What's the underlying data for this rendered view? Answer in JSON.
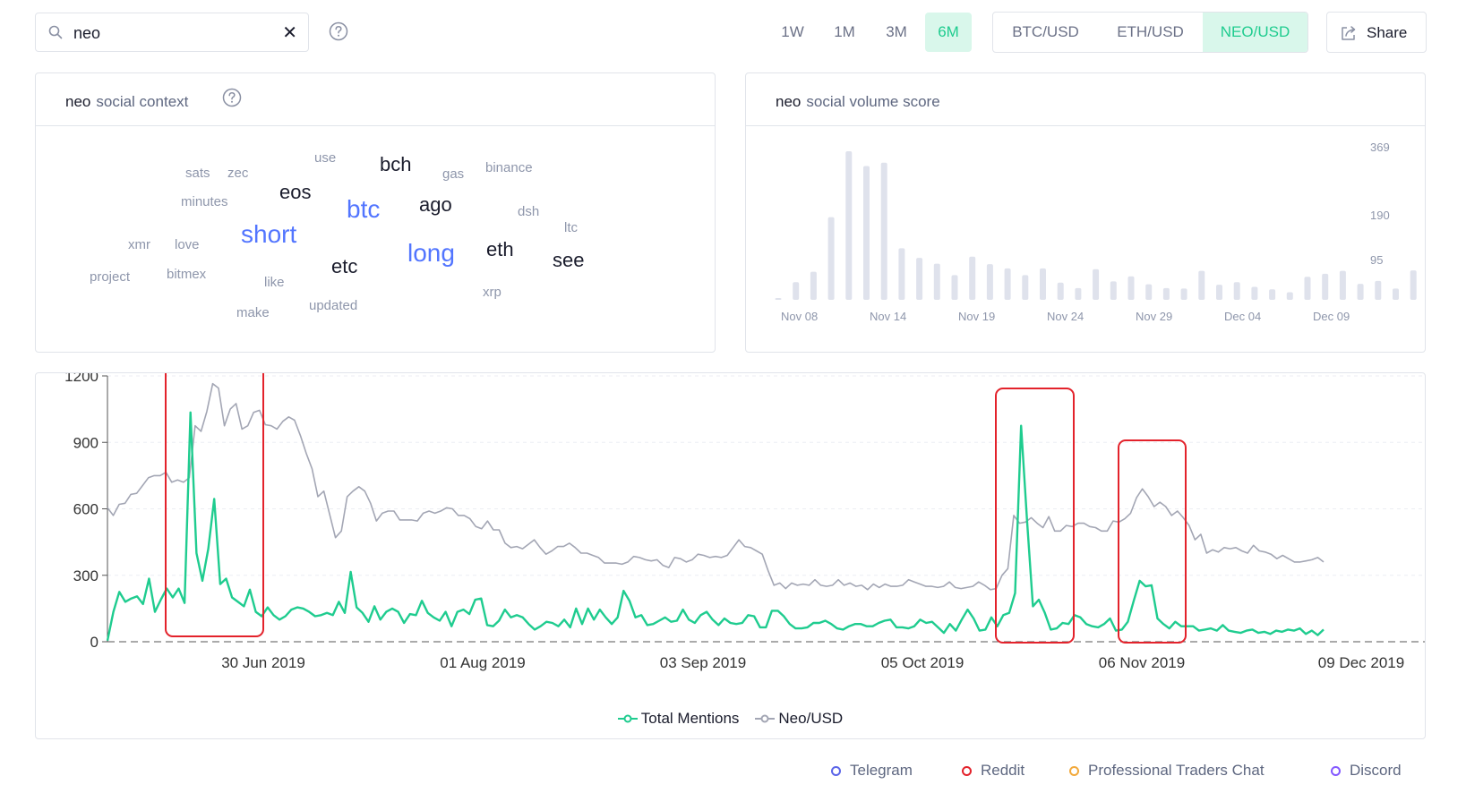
{
  "search": {
    "value": "neo",
    "clear_glyph": "✕"
  },
  "icons": {
    "search": "search-icon",
    "help": "help-circle-icon",
    "share": "share-icon",
    "clear": "close-icon"
  },
  "time_ranges": [
    {
      "label": "1W",
      "active": false
    },
    {
      "label": "1M",
      "active": false
    },
    {
      "label": "3M",
      "active": false
    },
    {
      "label": "6M",
      "active": true
    }
  ],
  "pairs": [
    {
      "label": "BTC/USD",
      "active": false
    },
    {
      "label": "ETH/USD",
      "active": false
    },
    {
      "label": "NEO/USD",
      "active": true
    }
  ],
  "share_label": "Share",
  "colors": {
    "accent": "#1fcc8f",
    "accent_bg": "#d9f7eb",
    "neo_line": "#a3a6b4",
    "bars": "#dfe2ec",
    "highlight": "#e3222b",
    "cloud_blue": "#5275ff"
  },
  "social_context": {
    "title": "neo",
    "subtitle": "social context",
    "words": [
      {
        "text": "use",
        "level": 1
      },
      {
        "text": "sats",
        "level": 1
      },
      {
        "text": "zec",
        "level": 1
      },
      {
        "text": "bch",
        "level": 3
      },
      {
        "text": "gas",
        "level": 1
      },
      {
        "text": "binance",
        "level": 1
      },
      {
        "text": "eos",
        "level": 3
      },
      {
        "text": "minutes",
        "level": 1
      },
      {
        "text": "btc",
        "level": 4
      },
      {
        "text": "ago",
        "level": 3
      },
      {
        "text": "dsh",
        "level": 1
      },
      {
        "text": "short",
        "level": 4
      },
      {
        "text": "ltc",
        "level": 1
      },
      {
        "text": "xmr",
        "level": 1
      },
      {
        "text": "love",
        "level": 1
      },
      {
        "text": "long",
        "level": 4
      },
      {
        "text": "eth",
        "level": 3
      },
      {
        "text": "see",
        "level": 3
      },
      {
        "text": "etc",
        "level": 3
      },
      {
        "text": "project",
        "level": 1
      },
      {
        "text": "bitmex",
        "level": 1
      },
      {
        "text": "like",
        "level": 1
      },
      {
        "text": "xrp",
        "level": 1
      },
      {
        "text": "updated",
        "level": 1
      },
      {
        "text": "make",
        "level": 1
      }
    ]
  },
  "social_volume": {
    "title": "neo",
    "subtitle": "social volume score",
    "y_ticks": [
      "369",
      "190",
      "95"
    ],
    "x_ticks": [
      "Nov 08",
      "Nov 14",
      "Nov 19",
      "Nov 24",
      "Nov 29",
      "Dec 04",
      "Dec 09"
    ]
  },
  "chart_data": [
    {
      "type": "bar",
      "title": "social volume score",
      "ylim": [
        0,
        369
      ],
      "x_labels": [
        "Nov 08",
        "Nov 14",
        "Nov 19",
        "Nov 24",
        "Nov 29",
        "Dec 04",
        "Dec 09"
      ],
      "values": [
        2,
        42,
        67,
        197,
        354,
        319,
        327,
        123,
        100,
        86,
        59,
        103,
        85,
        75,
        59,
        75,
        41,
        28,
        73,
        44,
        56,
        37,
        28,
        27,
        69,
        36,
        42,
        31,
        25,
        18,
        55,
        62,
        69,
        38,
        45,
        27,
        70,
        21,
        50
      ]
    },
    {
      "type": "line",
      "x_ticks": [
        "30 Jun 2019",
        "01 Aug 2019",
        "03 Sep 2019",
        "05 Oct 2019",
        "06 Nov 2019",
        "09 Dec 2019"
      ],
      "y_ticks": [
        0,
        300,
        600,
        900,
        1200
      ],
      "ylim": [
        0,
        1200
      ],
      "series": [
        {
          "name": "Total Mentions",
          "color": "#1fcc8f",
          "values": [
            5,
            135,
            225,
            180,
            195,
            205,
            170,
            285,
            135,
            190,
            240,
            200,
            240,
            175,
            1035,
            400,
            275,
            420,
            645,
            260,
            285,
            200,
            180,
            160,
            235,
            135,
            115,
            155,
            120,
            100,
            115,
            145,
            155,
            150,
            135,
            115,
            120,
            130,
            120,
            180,
            130,
            315,
            155,
            130,
            90,
            160,
            100,
            135,
            150,
            135,
            85,
            125,
            120,
            185,
            130,
            110,
            95,
            135,
            70,
            135,
            145,
            125,
            190,
            195,
            75,
            70,
            95,
            145,
            110,
            120,
            110,
            80,
            55,
            70,
            90,
            85,
            70,
            100,
            65,
            150,
            80,
            150,
            100,
            145,
            110,
            80,
            110,
            230,
            185,
            110,
            120,
            75,
            80,
            95,
            110,
            90,
            95,
            145,
            100,
            85,
            120,
            135,
            100,
            75,
            105,
            85,
            80,
            85,
            120,
            115,
            65,
            65,
            140,
            140,
            115,
            80,
            60,
            60,
            65,
            85,
            85,
            95,
            80,
            60,
            55,
            70,
            80,
            80,
            70,
            70,
            85,
            95,
            100,
            65,
            65,
            60,
            70,
            100,
            85,
            90,
            65,
            40,
            80,
            50,
            100,
            145,
            105,
            50,
            55,
            110,
            70,
            120,
            130,
            220,
            975,
            550,
            160,
            190,
            130,
            55,
            60,
            85,
            80,
            120,
            110,
            80,
            70,
            65,
            80,
            105,
            50,
            55,
            90,
            185,
            275,
            250,
            255,
            105,
            80,
            60,
            90,
            70,
            70,
            70,
            50,
            55,
            60,
            50,
            75,
            50,
            45,
            40,
            50,
            55,
            40,
            45,
            35,
            50,
            45,
            55,
            50,
            60,
            35,
            50,
            30,
            55
          ]
        },
        {
          "name": "Neo/USD",
          "color": "#a3a6b4",
          "values": [
            605,
            570,
            620,
            625,
            665,
            670,
            705,
            740,
            750,
            750,
            765,
            720,
            730,
            720,
            740,
            975,
            950,
            1040,
            1165,
            1145,
            975,
            1050,
            1075,
            960,
            975,
            1035,
            1045,
            980,
            975,
            960,
            995,
            1015,
            1000,
            930,
            850,
            780,
            655,
            680,
            575,
            470,
            500,
            655,
            680,
            700,
            680,
            625,
            545,
            580,
            590,
            590,
            550,
            550,
            550,
            545,
            580,
            590,
            580,
            590,
            605,
            600,
            570,
            570,
            555,
            520,
            510,
            545,
            505,
            505,
            445,
            425,
            430,
            420,
            440,
            460,
            425,
            395,
            410,
            430,
            430,
            445,
            425,
            400,
            400,
            390,
            380,
            355,
            355,
            355,
            350,
            360,
            385,
            380,
            370,
            365,
            370,
            345,
            335,
            380,
            375,
            360,
            370,
            395,
            390,
            380,
            385,
            380,
            390,
            425,
            460,
            430,
            425,
            410,
            395,
            320,
            255,
            265,
            240,
            265,
            255,
            260,
            255,
            280,
            255,
            250,
            255,
            280,
            255,
            265,
            250,
            255,
            235,
            260,
            245,
            260,
            250,
            250,
            255,
            280,
            270,
            260,
            250,
            250,
            245,
            250,
            270,
            245,
            240,
            245,
            250,
            270,
            255,
            235,
            240,
            300,
            330,
            570,
            535,
            540,
            560,
            535,
            515,
            565,
            500,
            500,
            525,
            520,
            535,
            535,
            520,
            515,
            500,
            500,
            545,
            540,
            555,
            580,
            650,
            690,
            655,
            610,
            630,
            610,
            570,
            590,
            560,
            525,
            460,
            485,
            400,
            415,
            405,
            425,
            420,
            425,
            410,
            400,
            435,
            410,
            405,
            395,
            375,
            390,
            375,
            360,
            360,
            365,
            370,
            380,
            360
          ]
        }
      ]
    }
  ],
  "main_chart": {
    "x_ticks": [
      "30 Jun 2019",
      "01 Aug 2019",
      "03 Sep 2019",
      "05 Oct 2019",
      "06 Nov 2019",
      "09 Dec 2019"
    ],
    "y_ticks": [
      "0",
      "300",
      "600",
      "900",
      "1200"
    ],
    "legend": [
      "Total Mentions",
      "Neo/USD"
    ]
  },
  "sources": [
    {
      "label": "Telegram",
      "color": "#5b65e8"
    },
    {
      "label": "Reddit",
      "color": "#e3222b"
    },
    {
      "label": "Professional Traders Chat",
      "color": "#f2a93b"
    },
    {
      "label": "Discord",
      "color": "#8358ff"
    }
  ]
}
